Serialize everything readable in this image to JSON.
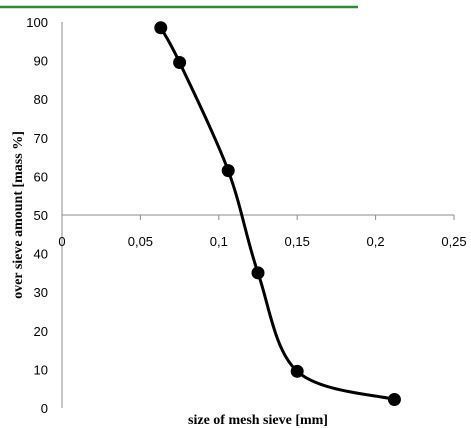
{
  "chart_data": {
    "type": "line",
    "title": "",
    "xlabel": "size of mesh sieve [mm]",
    "ylabel": "over sieve amount [mass %]",
    "xlim": [
      0,
      0.25
    ],
    "ylim": [
      0,
      100
    ],
    "x_ticks": [
      0,
      0.05,
      0.1,
      0.15,
      0.2,
      0.25
    ],
    "x_tick_labels": [
      "0",
      "0,05",
      "0,1",
      "0,15",
      "0,2",
      "0,25"
    ],
    "y_ticks": [
      0,
      10,
      20,
      30,
      40,
      50,
      60,
      70,
      80,
      90,
      100
    ],
    "y_tick_labels": [
      "0",
      "10",
      "20",
      "30",
      "40",
      "50",
      "60",
      "70",
      "80",
      "90",
      "100"
    ],
    "x_axis_crosses_y_at": 50,
    "grid": false,
    "smooth": true,
    "series": [
      {
        "x": [
          0.063,
          0.075,
          0.106,
          0.125,
          0.15,
          0.212
        ],
        "y": [
          98.5,
          89.5,
          61.5,
          35,
          9.5,
          2.2
        ]
      }
    ],
    "colors": {
      "line": "#000000",
      "marker": "#000000",
      "top_rule": "#2e8b2e"
    }
  }
}
